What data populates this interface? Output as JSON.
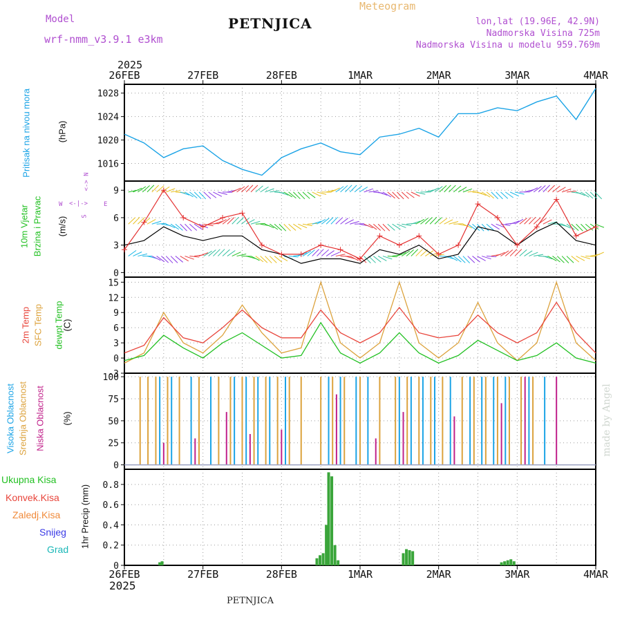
{
  "header": {
    "model_label": "Model",
    "model_name": "wrf-nmm_v3.9.1  e3km",
    "station": "PETNJICA",
    "product": "Meteogram",
    "lonlat": "lon,lat (19.96E, 42.9N)",
    "altitude": "Nadmorska Visina 725m",
    "model_altitude": "Nadmorska Visina u modelu 959.769m",
    "footer_station": "PETNJICA",
    "watermark": "made by Angel",
    "year_top": "2025",
    "year_bottom": "2025"
  },
  "colors": {
    "pressure": "#1aa3e6",
    "wind_obs": "#000000",
    "wind_model": "#e33030",
    "temp2m": "#e8443a",
    "sfc": "#dca23c",
    "dewpt": "#22c022",
    "high_cloud": "#1aa3e6",
    "mid_cloud": "#dca23c",
    "low_cloud": "#c0208a",
    "precip_total": "#3aa53a",
    "precip_conv": "#d03030"
  },
  "time_axis": {
    "labels": [
      "26FEB",
      "27FEB",
      "28FEB",
      "1MAR",
      "2MAR",
      "3MAR",
      "4MAR"
    ],
    "days": 6
  },
  "chart_data": [
    {
      "type": "line",
      "name": "pressure",
      "title": "Pritisak na nivou mora",
      "ylabel": "(hPa)",
      "ylim": [
        1013,
        1029.5
      ],
      "yticks": [
        1016,
        1020,
        1024,
        1028
      ],
      "x": [
        0,
        0.25,
        0.5,
        0.75,
        1,
        1.25,
        1.5,
        1.75,
        2,
        2.25,
        2.5,
        2.75,
        3,
        3.25,
        3.5,
        3.75,
        4,
        4.25,
        4.5,
        4.75,
        5,
        5.25,
        5.5,
        5.75,
        6
      ],
      "values": [
        1021,
        1019.5,
        1017,
        1018.5,
        1019,
        1016.5,
        1015,
        1014,
        1017,
        1018.5,
        1019.5,
        1018,
        1017.5,
        1020.5,
        1021,
        1022,
        1020.5,
        1024.5,
        1024.5,
        1025.5,
        1025,
        1026.5,
        1027.5,
        1023.5,
        1028.8
      ]
    },
    {
      "type": "line",
      "name": "wind",
      "title": "10m Vjetar",
      "subtitle": "Brzina i Pravac",
      "ylabel": "(m/s)",
      "ylim": [
        -0.5,
        10
      ],
      "yticks": [
        0,
        3,
        6,
        9
      ],
      "compass": {
        "n": "N",
        "s": "S",
        "e": "E",
        "w": "W"
      },
      "x": [
        0,
        0.25,
        0.5,
        0.75,
        1,
        1.25,
        1.5,
        1.75,
        2,
        2.25,
        2.5,
        2.75,
        3,
        3.25,
        3.5,
        3.75,
        4,
        4.25,
        4.5,
        4.75,
        5,
        5.25,
        5.5,
        5.75,
        6
      ],
      "series": [
        {
          "name": "speed",
          "values": [
            3,
            3.5,
            5,
            4,
            3.5,
            4,
            4,
            2.5,
            2,
            1,
            1.5,
            1.5,
            1,
            2.5,
            2,
            3,
            1.5,
            2,
            5,
            4.5,
            3,
            4.5,
            5.5,
            3.5,
            3
          ]
        },
        {
          "name": "gust",
          "values": [
            2.5,
            5.5,
            9,
            6,
            5,
            6,
            6.5,
            3,
            2,
            2,
            3,
            2.5,
            1.5,
            4,
            3,
            4,
            2,
            3,
            7.5,
            6,
            3,
            5,
            8,
            4,
            5
          ]
        }
      ]
    },
    {
      "type": "line",
      "name": "temperature",
      "title": "2m Temp",
      "title2": "SFC Temp",
      "title3": "dewpt Temp",
      "ylabel": "(C)",
      "ylim": [
        -3,
        16
      ],
      "yticks": [
        -3,
        0,
        3,
        6,
        9,
        12,
        15
      ],
      "x": [
        0,
        0.25,
        0.5,
        0.75,
        1,
        1.25,
        1.5,
        1.75,
        2,
        2.25,
        2.5,
        2.75,
        3,
        3.25,
        3.5,
        3.75,
        4,
        4.25,
        4.5,
        4.75,
        5,
        5.25,
        5.5,
        5.75,
        6
      ],
      "series": [
        {
          "name": "2m Temp",
          "values": [
            1,
            2.5,
            8,
            4,
            3,
            6,
            9.5,
            6,
            4,
            4,
            9.5,
            5,
            3,
            5,
            10,
            5,
            4,
            4.5,
            8.5,
            5,
            3,
            5,
            11,
            5,
            1
          ]
        },
        {
          "name": "SFC Temp",
          "values": [
            -1,
            1,
            9,
            3,
            1,
            4.5,
            10.5,
            5,
            1,
            2,
            15,
            3,
            0,
            3,
            15,
            3,
            0,
            3,
            11,
            3,
            -0.5,
            3,
            15,
            3,
            -0.5
          ]
        },
        {
          "name": "dewpt Temp",
          "values": [
            -0.5,
            0.5,
            4.5,
            2,
            0,
            3,
            5,
            2.5,
            0,
            0.5,
            7,
            1,
            -1,
            1,
            5,
            1,
            -1,
            0.5,
            3.5,
            1.5,
            -0.5,
            0.5,
            3,
            0,
            -1
          ]
        }
      ]
    },
    {
      "type": "bar",
      "name": "clouds",
      "title": "Visoka Oblacnost",
      "title2": "Srednja Oblacnost",
      "title3": "Niska Oblacnost",
      "ylabel": "(%)",
      "ylim": [
        -5,
        104
      ],
      "yticks": [
        0,
        25,
        50,
        75,
        100
      ],
      "series": [
        {
          "name": "Visoka",
          "x": [
            0.45,
            0.6,
            0.85,
            1.1,
            1.4,
            1.55,
            1.7,
            1.85,
            2.05,
            2.6,
            2.75,
            2.95,
            3.1,
            3.5,
            3.65,
            3.8,
            3.95,
            4.15,
            4.4,
            4.55,
            4.7,
            4.85,
            5.15,
            5.35
          ],
          "values": [
            100,
            100,
            100,
            100,
            100,
            100,
            100,
            100,
            100,
            100,
            100,
            100,
            100,
            100,
            100,
            100,
            100,
            100,
            100,
            100,
            100,
            100,
            100,
            100
          ]
        },
        {
          "name": "Srednja",
          "x": [
            0.2,
            0.3,
            0.4,
            0.55,
            0.7,
            0.95,
            1.2,
            1.35,
            1.5,
            1.65,
            1.8,
            1.95,
            2.1,
            2.25,
            2.5,
            2.65,
            2.8,
            3.0,
            3.25,
            3.45,
            3.6,
            3.75,
            3.9,
            4.05,
            4.3,
            4.45,
            4.6,
            4.75,
            4.9,
            5.05,
            5.2
          ],
          "values": [
            100,
            100,
            100,
            100,
            100,
            100,
            100,
            100,
            100,
            100,
            100,
            100,
            100,
            100,
            100,
            100,
            100,
            100,
            100,
            100,
            100,
            100,
            100,
            100,
            100,
            100,
            100,
            100,
            100,
            100,
            100
          ]
        },
        {
          "name": "Niska",
          "x": [
            0.5,
            0.9,
            1.3,
            1.6,
            2.0,
            2.7,
            3.2,
            3.55,
            4.2,
            4.8,
            5.1,
            5.5
          ],
          "values": [
            25,
            30,
            60,
            35,
            40,
            80,
            30,
            60,
            55,
            70,
            100,
            100
          ]
        }
      ]
    },
    {
      "type": "bar",
      "name": "precipitation",
      "ylabel": "1hr Precip (mm)",
      "ylim": [
        0,
        0.95
      ],
      "yticks": [
        0,
        0.2,
        0.4,
        0.6,
        0.8
      ],
      "legend": [
        "Ukupna Kisa",
        "Konvek.Kisa",
        "Zaledj.Kisa",
        "Snijeg",
        "Grad"
      ],
      "series": [
        {
          "name": "Ukupna Kisa",
          "x": [
            0.45,
            0.48,
            2.45,
            2.49,
            2.53,
            2.57,
            2.6,
            2.64,
            2.68,
            2.72,
            3.55,
            3.59,
            3.63,
            3.67,
            4.8,
            4.84,
            4.88,
            4.92,
            4.96
          ],
          "values": [
            0.03,
            0.04,
            0.07,
            0.1,
            0.12,
            0.4,
            0.92,
            0.88,
            0.2,
            0.05,
            0.12,
            0.16,
            0.15,
            0.14,
            0.03,
            0.04,
            0.05,
            0.06,
            0.04
          ]
        }
      ]
    }
  ]
}
